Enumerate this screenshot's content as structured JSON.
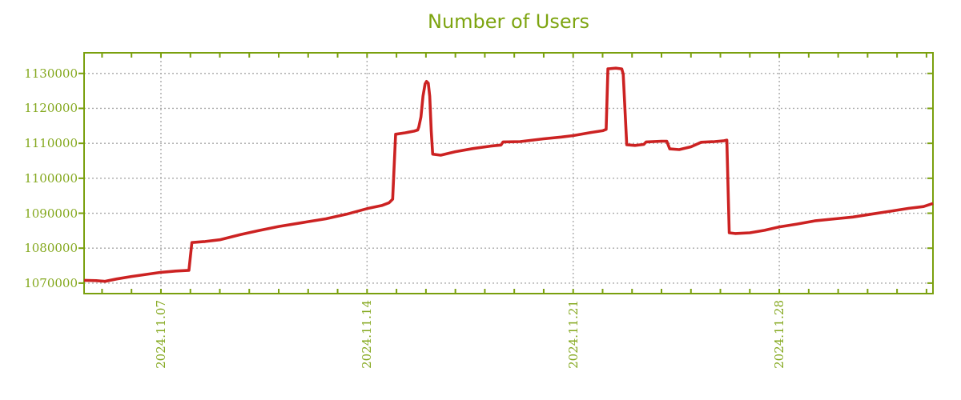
{
  "page": {
    "background": "#ffffff"
  },
  "chart_data": {
    "type": "line",
    "title": "Number of Users",
    "legend": null,
    "grid": true,
    "colors": {
      "title": "#7da410",
      "axis": "#7aa00e",
      "tick_labels": "#84a81e",
      "grid": "#aaaaaa",
      "line": "#cc2222",
      "background": "#ffffff"
    },
    "x_axis": {
      "unit": "date (day of November 2024; 31+ = December)",
      "range_days": [
        4.39,
        33.22
      ],
      "minor_tick_every_days": 1,
      "label_rotation_deg": -90,
      "ticks": [
        {
          "day": 7,
          "label": "2024.11.07"
        },
        {
          "day": 14,
          "label": "2024.11.14"
        },
        {
          "day": 21,
          "label": "2024.11.21"
        },
        {
          "day": 28,
          "label": "2024.11.28"
        }
      ]
    },
    "y_axis": {
      "range": [
        1067000,
        1135900
      ],
      "ticks": [
        1070000,
        1080000,
        1090000,
        1100000,
        1110000,
        1120000,
        1130000
      ]
    },
    "series": [
      {
        "name": "Number of Users",
        "color": "#cc2222",
        "points": [
          [
            4.39,
            1070800
          ],
          [
            4.8,
            1070700
          ],
          [
            5.1,
            1070500
          ],
          [
            5.5,
            1071200
          ],
          [
            6.0,
            1071900
          ],
          [
            6.5,
            1072500
          ],
          [
            7.0,
            1073100
          ],
          [
            7.5,
            1073450
          ],
          [
            7.95,
            1073650
          ],
          [
            8.05,
            1081600
          ],
          [
            8.5,
            1081900
          ],
          [
            9.0,
            1082400
          ],
          [
            9.7,
            1083900
          ],
          [
            10.3,
            1085000
          ],
          [
            11.0,
            1086200
          ],
          [
            11.8,
            1087300
          ],
          [
            12.6,
            1088400
          ],
          [
            13.3,
            1089700
          ],
          [
            14.0,
            1091300
          ],
          [
            14.5,
            1092200
          ],
          [
            14.75,
            1093000
          ],
          [
            14.87,
            1094000
          ],
          [
            14.97,
            1112600
          ],
          [
            15.3,
            1113000
          ],
          [
            15.6,
            1113500
          ],
          [
            15.72,
            1113800
          ],
          [
            15.76,
            1114700
          ],
          [
            15.83,
            1117500
          ],
          [
            15.9,
            1123500
          ],
          [
            15.97,
            1127000
          ],
          [
            16.02,
            1127700
          ],
          [
            16.08,
            1127200
          ],
          [
            16.13,
            1123500
          ],
          [
            16.18,
            1113500
          ],
          [
            16.23,
            1106900
          ],
          [
            16.5,
            1106600
          ],
          [
            17.0,
            1107600
          ],
          [
            17.6,
            1108500
          ],
          [
            18.2,
            1109200
          ],
          [
            18.55,
            1109500
          ],
          [
            18.62,
            1110400
          ],
          [
            19.2,
            1110500
          ],
          [
            20.0,
            1111300
          ],
          [
            20.6,
            1111800
          ],
          [
            21.0,
            1112200
          ],
          [
            21.6,
            1113100
          ],
          [
            22.0,
            1113600
          ],
          [
            22.12,
            1114000
          ],
          [
            22.18,
            1131300
          ],
          [
            22.45,
            1131500
          ],
          [
            22.65,
            1131300
          ],
          [
            22.7,
            1129800
          ],
          [
            22.82,
            1109600
          ],
          [
            23.1,
            1109400
          ],
          [
            23.4,
            1109700
          ],
          [
            23.48,
            1110400
          ],
          [
            24.0,
            1110600
          ],
          [
            24.18,
            1110600
          ],
          [
            24.28,
            1108400
          ],
          [
            24.6,
            1108200
          ],
          [
            25.0,
            1109000
          ],
          [
            25.35,
            1110300
          ],
          [
            25.8,
            1110500
          ],
          [
            26.1,
            1110700
          ],
          [
            26.22,
            1110900
          ],
          [
            26.3,
            1084400
          ],
          [
            26.5,
            1084200
          ],
          [
            27.0,
            1084400
          ],
          [
            27.5,
            1085100
          ],
          [
            28.0,
            1086100
          ],
          [
            28.6,
            1086900
          ],
          [
            29.2,
            1087800
          ],
          [
            29.9,
            1088400
          ],
          [
            30.5,
            1088900
          ],
          [
            31.1,
            1089700
          ],
          [
            31.8,
            1090600
          ],
          [
            32.4,
            1091400
          ],
          [
            32.9,
            1091900
          ],
          [
            33.22,
            1092800
          ]
        ]
      }
    ]
  }
}
